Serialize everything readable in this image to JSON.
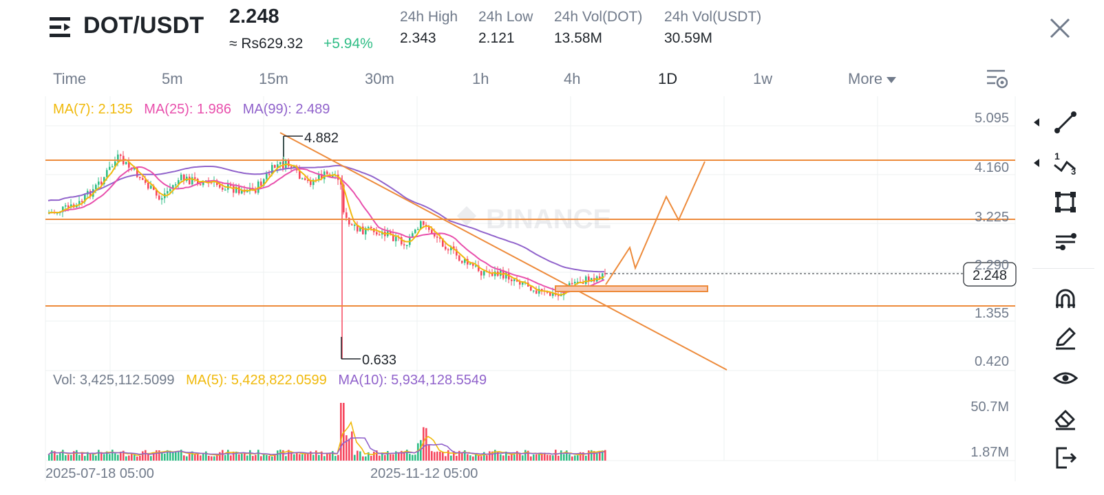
{
  "header": {
    "pair": "DOT/USDT",
    "last_price": "2.248",
    "fiat_price": "≈ Rs629.32",
    "change_pct": "+5.94%",
    "stats": [
      {
        "label": "24h High",
        "value": "2.343"
      },
      {
        "label": "24h Low",
        "value": "2.121"
      },
      {
        "label": "24h Vol(DOT)",
        "value": "13.58M"
      },
      {
        "label": "24h Vol(USDT)",
        "value": "30.59M"
      }
    ]
  },
  "tabs": [
    "Time",
    "5m",
    "15m",
    "30m",
    "1h",
    "4h",
    "1D",
    "1w",
    "More"
  ],
  "active_tab": "1D",
  "price_legend": {
    "ma7": "MA(7): 2.135",
    "ma25": "MA(25): 1.986",
    "ma99": "MA(99): 2.489"
  },
  "volume_legend": {
    "vol": "Vol: 3,425,112.5099",
    "ma5": "MA(5): 5,428,822.0599",
    "ma10": "MA(10): 5,934,128.5549"
  },
  "price_axis": [
    "5.095",
    "4.160",
    "3.225",
    "2.290",
    "1.355",
    "0.420"
  ],
  "current_price_tag": "2.248",
  "high_marker": "4.882",
  "low_marker": "0.633",
  "volume_axis": [
    "50.7M",
    "1.87M"
  ],
  "dates": [
    "2025-07-18 05:00",
    "2025-11-12 05:00"
  ],
  "watermark": "BINANCE",
  "colors": {
    "up": "#2ebd85",
    "down": "#f6465d",
    "ma7": "#f0b90b",
    "ma25": "#e84fac",
    "ma99": "#9062cb",
    "drawing": "#ed8a3a"
  },
  "toolbar": [
    "trend-line-icon",
    "fibonacci-icon",
    "shape-icon",
    "indicator-icon",
    "magnet-icon",
    "pencil-icon",
    "eye-icon",
    "eraser-icon",
    "exit-icon"
  ]
}
